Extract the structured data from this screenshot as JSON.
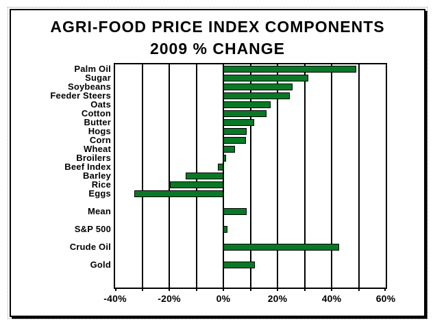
{
  "title": {
    "line1": "AGRI-FOOD PRICE INDEX COMPONENTS",
    "line2": "2009 % CHANGE"
  },
  "chart_data": {
    "type": "bar",
    "orientation": "horizontal",
    "title": "AGRI-FOOD PRICE INDEX COMPONENTS 2009 % CHANGE",
    "xlabel": "",
    "ylabel": "",
    "x_range": [
      -40,
      60
    ],
    "gridline_step": 10,
    "grid_on": true,
    "legend": "none",
    "x_tick_labels": [
      "-40%",
      "-20%",
      "0%",
      "20%",
      "40%",
      "60%"
    ],
    "x_tick_values": [
      -40,
      -20,
      0,
      20,
      40,
      60
    ],
    "bar_colors": {
      "fill_light": "#0c9f33",
      "fill_dark": "#06521a",
      "border": "#000000"
    },
    "items": [
      {
        "label": "Palm Oil",
        "value": 49
      },
      {
        "label": "Sugar",
        "value": 31.5
      },
      {
        "label": "Soybeans",
        "value": 25.5
      },
      {
        "label": "Feeder Steers",
        "value": 24.5
      },
      {
        "label": "Oats",
        "value": 17.5
      },
      {
        "label": "Cotton",
        "value": 16
      },
      {
        "label": "Butter",
        "value": 11.5
      },
      {
        "label": "Hogs",
        "value": 8.6
      },
      {
        "label": "Corn",
        "value": 8.3
      },
      {
        "label": "Wheat",
        "value": 4.4
      },
      {
        "label": "Broilers",
        "value": 1
      },
      {
        "label": "Beef Index",
        "value": -2
      },
      {
        "label": "Barley",
        "value": -14
      },
      {
        "label": "Rice",
        "value": -19.7
      },
      {
        "label": "Eggs",
        "value": -33
      },
      {
        "label": "Mean",
        "value": 8.5,
        "gap_before": true
      },
      {
        "label": "S&P 500",
        "value": 1.6,
        "gap_before": true
      },
      {
        "label": "Crude Oil",
        "value": 42.7,
        "gap_before": true
      },
      {
        "label": "Gold",
        "value": 11.6,
        "gap_before": true
      }
    ]
  }
}
